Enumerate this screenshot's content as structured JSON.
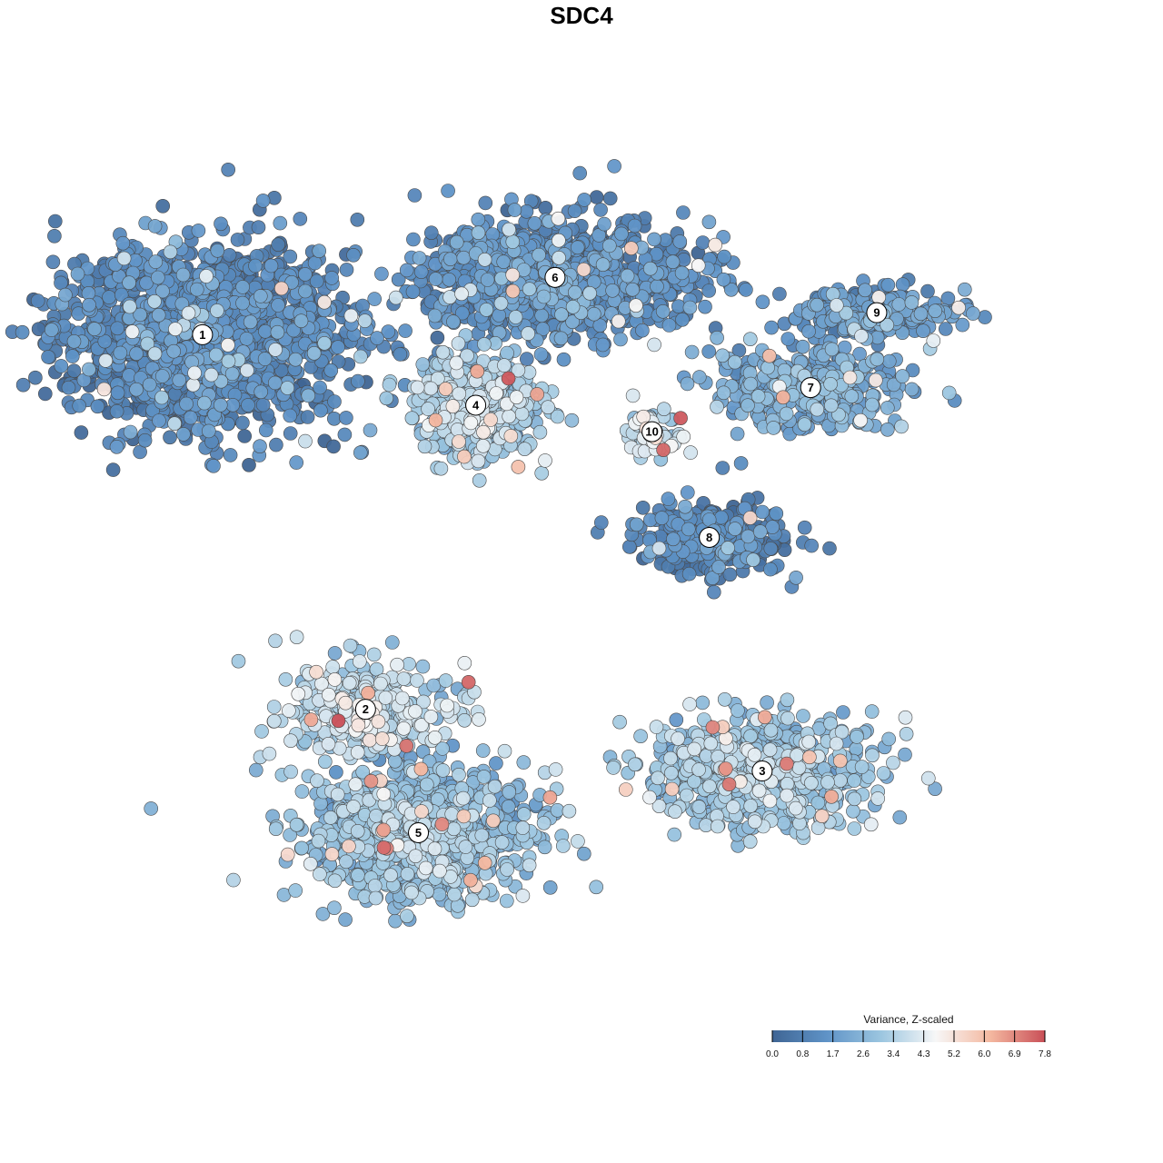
{
  "chart_data": {
    "type": "scatter",
    "title": "SDC4",
    "xlabel": "",
    "ylabel": "",
    "grid": false,
    "legend_placement": "bottom-right",
    "colorbar": {
      "title": "Variance, Z-scaled",
      "ticks": [
        "0.0",
        "0.8",
        "1.7",
        "2.6",
        "3.4",
        "4.3",
        "5.2",
        "6.0",
        "6.9",
        "7.8"
      ],
      "min": 0.0,
      "max": 7.8,
      "colors": [
        "#3f6594",
        "#5f93c7",
        "#9cc6e0",
        "#f7f7f7",
        "#f4b8a0",
        "#c94f57"
      ]
    },
    "clusters": [
      {
        "label": "1",
        "x": -8.6,
        "y": 5.6,
        "mean": 1.0,
        "spread": [
          2.9,
          1.9
        ],
        "n": 1600
      },
      {
        "label": "2",
        "x": -4.9,
        "y": -2.9,
        "mean": 3.6,
        "spread": [
          1.8,
          1.0
        ],
        "n": 320
      },
      {
        "label": "3",
        "x": 4.1,
        "y": -4.3,
        "mean": 2.9,
        "spread": [
          2.4,
          1.1
        ],
        "n": 700
      },
      {
        "label": "4",
        "x": -2.4,
        "y": 4.0,
        "mean": 3.1,
        "spread": [
          1.2,
          1.1
        ],
        "n": 500
      },
      {
        "label": "5",
        "x": -3.7,
        "y": -5.7,
        "mean": 2.7,
        "spread": [
          2.3,
          1.3
        ],
        "n": 1000
      },
      {
        "label": "6",
        "x": -0.6,
        "y": 6.9,
        "mean": 1.2,
        "spread": [
          2.8,
          1.2
        ],
        "n": 1100
      },
      {
        "label": "7",
        "x": 5.2,
        "y": 4.4,
        "mean": 2.0,
        "spread": [
          2.0,
          0.8
        ],
        "n": 400
      },
      {
        "label": "8",
        "x": 2.9,
        "y": 1.0,
        "mean": 0.9,
        "spread": [
          1.5,
          0.8
        ],
        "n": 300
      },
      {
        "label": "9",
        "x": 6.7,
        "y": 6.1,
        "mean": 1.5,
        "spread": [
          1.6,
          0.5
        ],
        "n": 250
      },
      {
        "label": "10",
        "x": 1.6,
        "y": 3.4,
        "mean": 3.8,
        "spread": [
          0.5,
          0.5
        ],
        "n": 70
      }
    ]
  }
}
